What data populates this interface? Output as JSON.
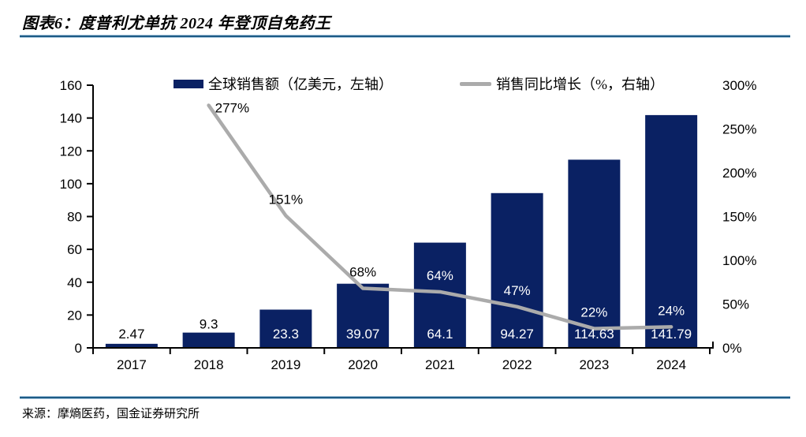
{
  "chart_data": {
    "type": "combo-bar-line",
    "title": "图表6：度普利尤单抗 2024 年登顶自免药王",
    "categories": [
      "2017",
      "2018",
      "2019",
      "2020",
      "2021",
      "2022",
      "2023",
      "2024"
    ],
    "series": [
      {
        "name": "全球销售额（亿美元，左轴）",
        "type": "bar",
        "axis": "left",
        "color": "#0a2163",
        "values": [
          2.47,
          9.3,
          23.3,
          39.07,
          64.1,
          94.27,
          114.63,
          141.79
        ],
        "labels": [
          "2.47",
          "9.3",
          "23.3",
          "39.07",
          "64.1",
          "94.27",
          "114.63",
          "141.79"
        ]
      },
      {
        "name": "销售同比增长（%，右轴）",
        "type": "line",
        "axis": "right",
        "color": "#ababab",
        "values": [
          null,
          277,
          151,
          68,
          64,
          47,
          22,
          24
        ],
        "labels": [
          "",
          "277%",
          "151%",
          "68%",
          "64%",
          "47%",
          "22%",
          "24%"
        ]
      }
    ],
    "left_axis": {
      "min": 0,
      "max": 160,
      "step": 20,
      "ticks": [
        "0",
        "20",
        "40",
        "60",
        "80",
        "100",
        "120",
        "140",
        "160"
      ]
    },
    "right_axis": {
      "min": 0,
      "max": 300,
      "step": 50,
      "ticks": [
        "0%",
        "50%",
        "100%",
        "150%",
        "200%",
        "250%",
        "300%"
      ]
    },
    "grid": false,
    "legend_position": "top"
  },
  "footer": {
    "source": "来源：摩熵医药，国金证券研究所"
  }
}
